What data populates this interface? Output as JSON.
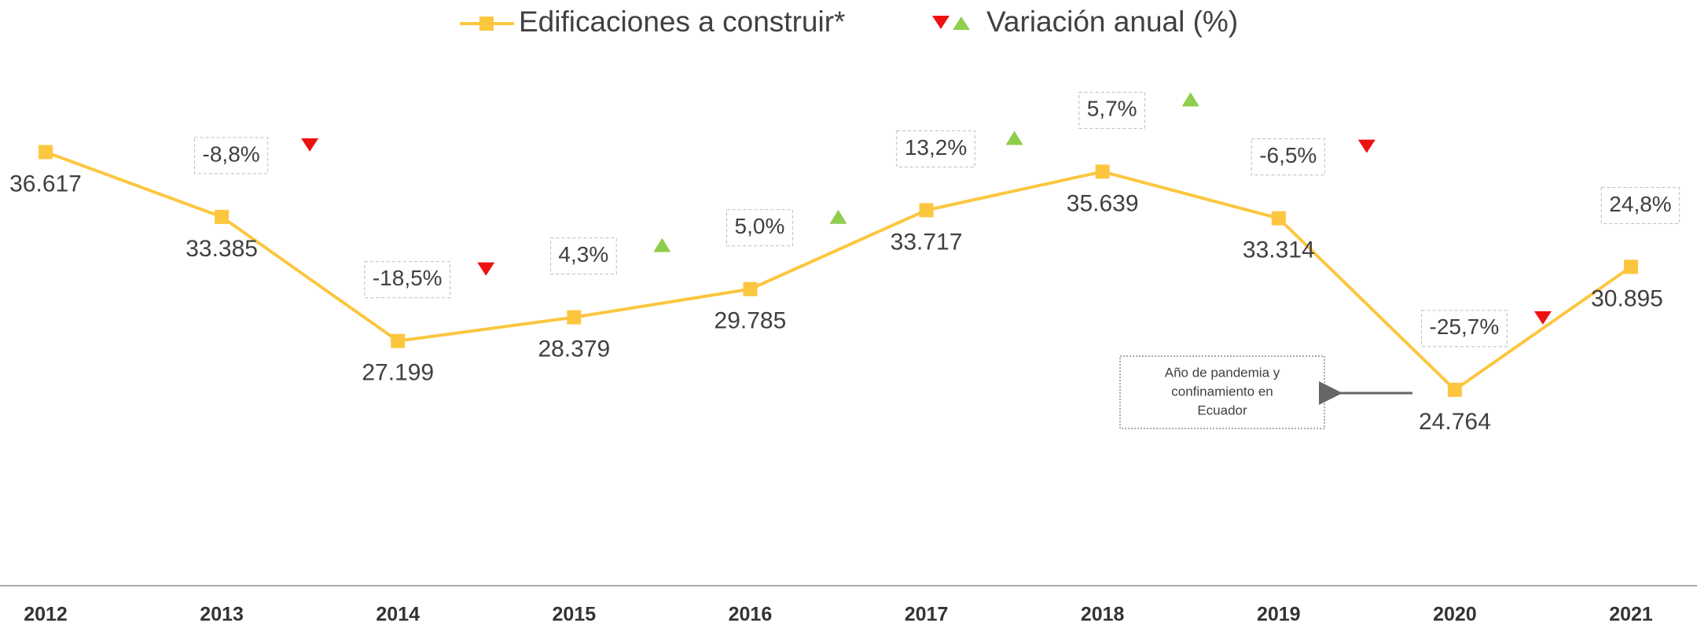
{
  "chart_data": {
    "type": "line",
    "categories": [
      "2012",
      "2013",
      "2014",
      "2015",
      "2016",
      "2017",
      "2018",
      "2019",
      "2020",
      "2021"
    ],
    "series": [
      {
        "name": "Edificaciones a construir*",
        "color": "#fcc63f",
        "values": [
          36617,
          33385,
          27199,
          28379,
          29785,
          33717,
          35639,
          33314,
          24764,
          30895
        ],
        "value_labels": [
          "36.617",
          "33.385",
          "27.199",
          "28.379",
          "29.785",
          "33.717",
          "35.639",
          "33.314",
          "24.764",
          "30.895"
        ]
      }
    ],
    "variation": {
      "name": "Variación anual (%)",
      "up_color": "#8fce4d",
      "down_color": "#ee1111",
      "values": [
        null,
        -8.8,
        -18.5,
        4.3,
        5.0,
        13.2,
        5.7,
        -6.5,
        -25.7,
        24.8
      ],
      "value_labels": [
        null,
        "-8,8%",
        "-18,5%",
        "4,3%",
        "5,0%",
        "13,2%",
        "5,7%",
        "-6,5%",
        "-25,7%",
        "24,8%"
      ]
    },
    "annotations": [
      {
        "text": [
          "Año de pandemia  y",
          "confinamiento en",
          "Ecuador"
        ]
      }
    ],
    "ylim": [
      15000,
      44000
    ]
  }
}
